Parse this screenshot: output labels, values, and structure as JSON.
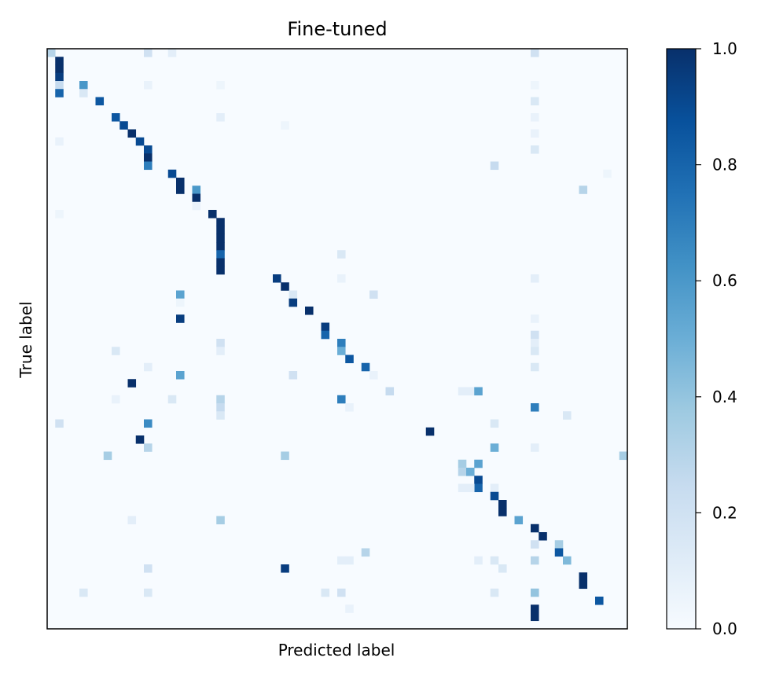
{
  "chart_data": {
    "type": "heatmap",
    "title": "Fine-tuned",
    "xlabel": "Predicted label",
    "ylabel": "True label",
    "n": 72,
    "colorbar": {
      "min": 0.0,
      "max": 1.0,
      "ticks": [
        "0.0",
        "0.2",
        "0.4",
        "0.6",
        "0.8",
        "1.0"
      ],
      "colormap": "Blues"
    },
    "cells": [
      [
        0,
        0,
        0.3
      ],
      [
        0,
        12,
        0.2
      ],
      [
        0,
        15,
        0.1
      ],
      [
        0,
        60,
        0.2
      ],
      [
        1,
        1,
        1.0
      ],
      [
        2,
        1,
        1.0
      ],
      [
        3,
        1,
        0.95
      ],
      [
        4,
        1,
        0.25
      ],
      [
        4,
        4,
        0.6
      ],
      [
        4,
        12,
        0.07
      ],
      [
        4,
        21,
        0.05
      ],
      [
        4,
        60,
        0.05
      ],
      [
        5,
        1,
        0.8
      ],
      [
        5,
        4,
        0.15
      ],
      [
        6,
        6,
        0.85
      ],
      [
        6,
        60,
        0.15
      ],
      [
        8,
        8,
        0.85
      ],
      [
        8,
        21,
        0.1
      ],
      [
        8,
        60,
        0.07
      ],
      [
        9,
        9,
        0.9
      ],
      [
        9,
        29,
        0.05
      ],
      [
        10,
        10,
        1.0
      ],
      [
        10,
        60,
        0.07
      ],
      [
        11,
        11,
        0.9
      ],
      [
        11,
        1,
        0.07
      ],
      [
        12,
        12,
        0.9
      ],
      [
        12,
        60,
        0.15
      ],
      [
        13,
        12,
        1.0
      ],
      [
        14,
        12,
        0.7
      ],
      [
        14,
        55,
        0.25
      ],
      [
        15,
        15,
        0.9
      ],
      [
        15,
        69,
        0.05
      ],
      [
        16,
        16,
        1.0
      ],
      [
        17,
        16,
        1.0
      ],
      [
        17,
        18,
        0.6
      ],
      [
        17,
        66,
        0.3
      ],
      [
        18,
        18,
        1.0
      ],
      [
        19,
        18,
        0.07
      ],
      [
        20,
        20,
        1.0
      ],
      [
        20,
        1,
        0.05
      ],
      [
        21,
        21,
        1.0
      ],
      [
        22,
        21,
        1.0
      ],
      [
        23,
        21,
        1.0
      ],
      [
        24,
        21,
        1.0
      ],
      [
        25,
        21,
        0.8
      ],
      [
        25,
        36,
        0.15
      ],
      [
        26,
        21,
        1.0
      ],
      [
        27,
        21,
        1.0
      ],
      [
        28,
        28,
        0.95
      ],
      [
        28,
        36,
        0.07
      ],
      [
        28,
        60,
        0.1
      ],
      [
        29,
        29,
        1.0
      ],
      [
        30,
        16,
        0.55
      ],
      [
        30,
        30,
        0.15
      ],
      [
        30,
        40,
        0.2
      ],
      [
        31,
        30,
        0.95
      ],
      [
        31,
        16,
        0.05
      ],
      [
        32,
        32,
        1.0
      ],
      [
        33,
        16,
        0.95
      ],
      [
        33,
        60,
        0.07
      ],
      [
        34,
        34,
        0.95
      ],
      [
        35,
        34,
        0.8
      ],
      [
        35,
        60,
        0.2
      ],
      [
        36,
        36,
        0.7
      ],
      [
        36,
        21,
        0.2
      ],
      [
        36,
        60,
        0.1
      ],
      [
        37,
        36,
        0.5
      ],
      [
        37,
        8,
        0.15
      ],
      [
        37,
        21,
        0.1
      ],
      [
        37,
        60,
        0.15
      ],
      [
        38,
        37,
        0.85
      ],
      [
        39,
        39,
        0.8
      ],
      [
        39,
        12,
        0.1
      ],
      [
        39,
        60,
        0.15
      ],
      [
        40,
        16,
        0.55
      ],
      [
        40,
        30,
        0.2
      ],
      [
        40,
        40,
        0.07
      ],
      [
        41,
        10,
        1.0
      ],
      [
        42,
        42,
        0.25
      ],
      [
        42,
        51,
        0.1
      ],
      [
        42,
        52,
        0.1
      ],
      [
        42,
        53,
        0.55
      ],
      [
        43,
        21,
        0.3
      ],
      [
        43,
        36,
        0.7
      ],
      [
        43,
        8,
        0.07
      ],
      [
        43,
        15,
        0.15
      ],
      [
        44,
        21,
        0.25
      ],
      [
        44,
        60,
        0.7
      ],
      [
        44,
        37,
        0.07
      ],
      [
        45,
        21,
        0.15
      ],
      [
        45,
        64,
        0.15
      ],
      [
        46,
        1,
        0.2
      ],
      [
        46,
        12,
        0.65
      ],
      [
        46,
        55,
        0.15
      ],
      [
        47,
        47,
        1.0
      ],
      [
        48,
        11,
        1.0
      ],
      [
        49,
        12,
        0.3
      ],
      [
        49,
        55,
        0.5
      ],
      [
        49,
        60,
        0.1
      ],
      [
        50,
        7,
        0.35
      ],
      [
        50,
        29,
        0.35
      ],
      [
        50,
        71,
        0.35
      ],
      [
        51,
        51,
        0.35
      ],
      [
        51,
        53,
        0.55
      ],
      [
        52,
        51,
        0.3
      ],
      [
        52,
        52,
        0.5
      ],
      [
        53,
        53,
        0.9
      ],
      [
        54,
        53,
        0.8
      ],
      [
        54,
        51,
        0.1
      ],
      [
        54,
        52,
        0.1
      ],
      [
        54,
        55,
        0.1
      ],
      [
        55,
        55,
        0.9
      ],
      [
        56,
        56,
        1.0
      ],
      [
        57,
        56,
        1.0
      ],
      [
        58,
        58,
        0.55
      ],
      [
        58,
        10,
        0.1
      ],
      [
        58,
        21,
        0.35
      ],
      [
        59,
        60,
        1.0
      ],
      [
        60,
        61,
        1.0
      ],
      [
        61,
        60,
        0.2
      ],
      [
        61,
        63,
        0.35
      ],
      [
        62,
        63,
        0.85
      ],
      [
        62,
        39,
        0.3
      ],
      [
        63,
        60,
        0.3
      ],
      [
        63,
        64,
        0.45
      ],
      [
        63,
        36,
        0.1
      ],
      [
        63,
        37,
        0.1
      ],
      [
        63,
        53,
        0.1
      ],
      [
        63,
        55,
        0.15
      ],
      [
        64,
        12,
        0.2
      ],
      [
        64,
        29,
        0.95
      ],
      [
        64,
        56,
        0.15
      ],
      [
        65,
        66,
        1.0
      ],
      [
        66,
        66,
        1.0
      ],
      [
        67,
        60,
        0.4
      ],
      [
        67,
        4,
        0.15
      ],
      [
        67,
        12,
        0.15
      ],
      [
        67,
        34,
        0.15
      ],
      [
        67,
        36,
        0.2
      ],
      [
        67,
        55,
        0.15
      ],
      [
        68,
        68,
        0.85
      ],
      [
        69,
        60,
        1.0
      ],
      [
        70,
        60,
        1.0
      ],
      [
        69,
        37,
        0.07
      ]
    ]
  }
}
